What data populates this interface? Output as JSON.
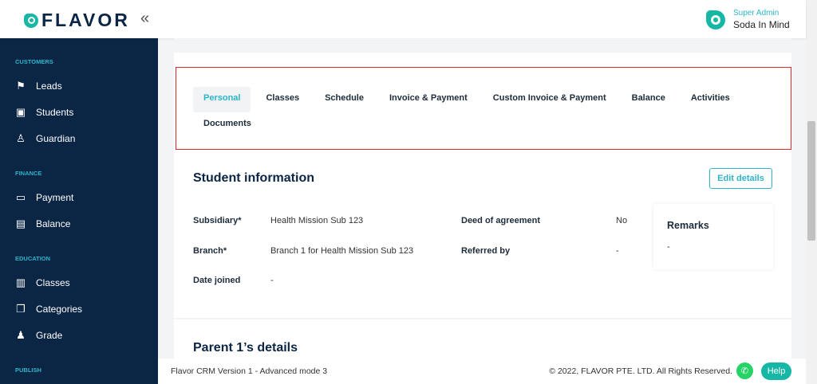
{
  "header": {
    "logo": "FLAVOR",
    "collapse_icon": "double-chevron-left",
    "user_role": "Super Admin",
    "user_name": "Soda In Mind"
  },
  "sidebar": {
    "sections": [
      {
        "title": "CUSTOMERS",
        "items": [
          {
            "label": "Leads",
            "icon": "signpost"
          },
          {
            "label": "Students",
            "icon": "id-card"
          },
          {
            "label": "Guardian",
            "icon": "guardian"
          }
        ]
      },
      {
        "title": "FINANCE",
        "items": [
          {
            "label": "Payment",
            "icon": "credit-card"
          },
          {
            "label": "Balance",
            "icon": "ledger"
          }
        ]
      },
      {
        "title": "EDUCATION",
        "items": [
          {
            "label": "Classes",
            "icon": "book"
          },
          {
            "label": "Categories",
            "icon": "layers"
          },
          {
            "label": "Grade",
            "icon": "hierarchy"
          }
        ]
      },
      {
        "title": "PUBLISH",
        "items": []
      }
    ]
  },
  "tabs": [
    {
      "label": "Personal",
      "active": true
    },
    {
      "label": "Classes"
    },
    {
      "label": "Schedule"
    },
    {
      "label": "Invoice & Payment"
    },
    {
      "label": "Custom Invoice & Payment"
    },
    {
      "label": "Balance"
    },
    {
      "label": "Activities"
    },
    {
      "label": "Documents"
    }
  ],
  "student_info": {
    "title": "Student information",
    "edit_label": "Edit details",
    "fields": [
      {
        "label": "Subsidiary*",
        "value": "Health Mission Sub 123"
      },
      {
        "label": "Branch*",
        "value": "Branch 1 for Health Mission Sub 123"
      },
      {
        "label": "Date joined",
        "value": "-"
      },
      {
        "label": "Deed of agreement",
        "value": "No"
      },
      {
        "label": "Referred by",
        "value": "-"
      }
    ],
    "remarks_title": "Remarks",
    "remarks_value": "-"
  },
  "parent": {
    "title": "Parent 1’s details"
  },
  "footer": {
    "version": "Flavor CRM Version 1 - Advanced mode 3",
    "copyright": "© 2022, FLAVOR PTE. LTD. All Rights Reserved.",
    "help": "Help"
  },
  "colors": {
    "accent": "#2bb5c8",
    "sidebar": "#0b2545",
    "highlight_border": "#e0282e"
  }
}
